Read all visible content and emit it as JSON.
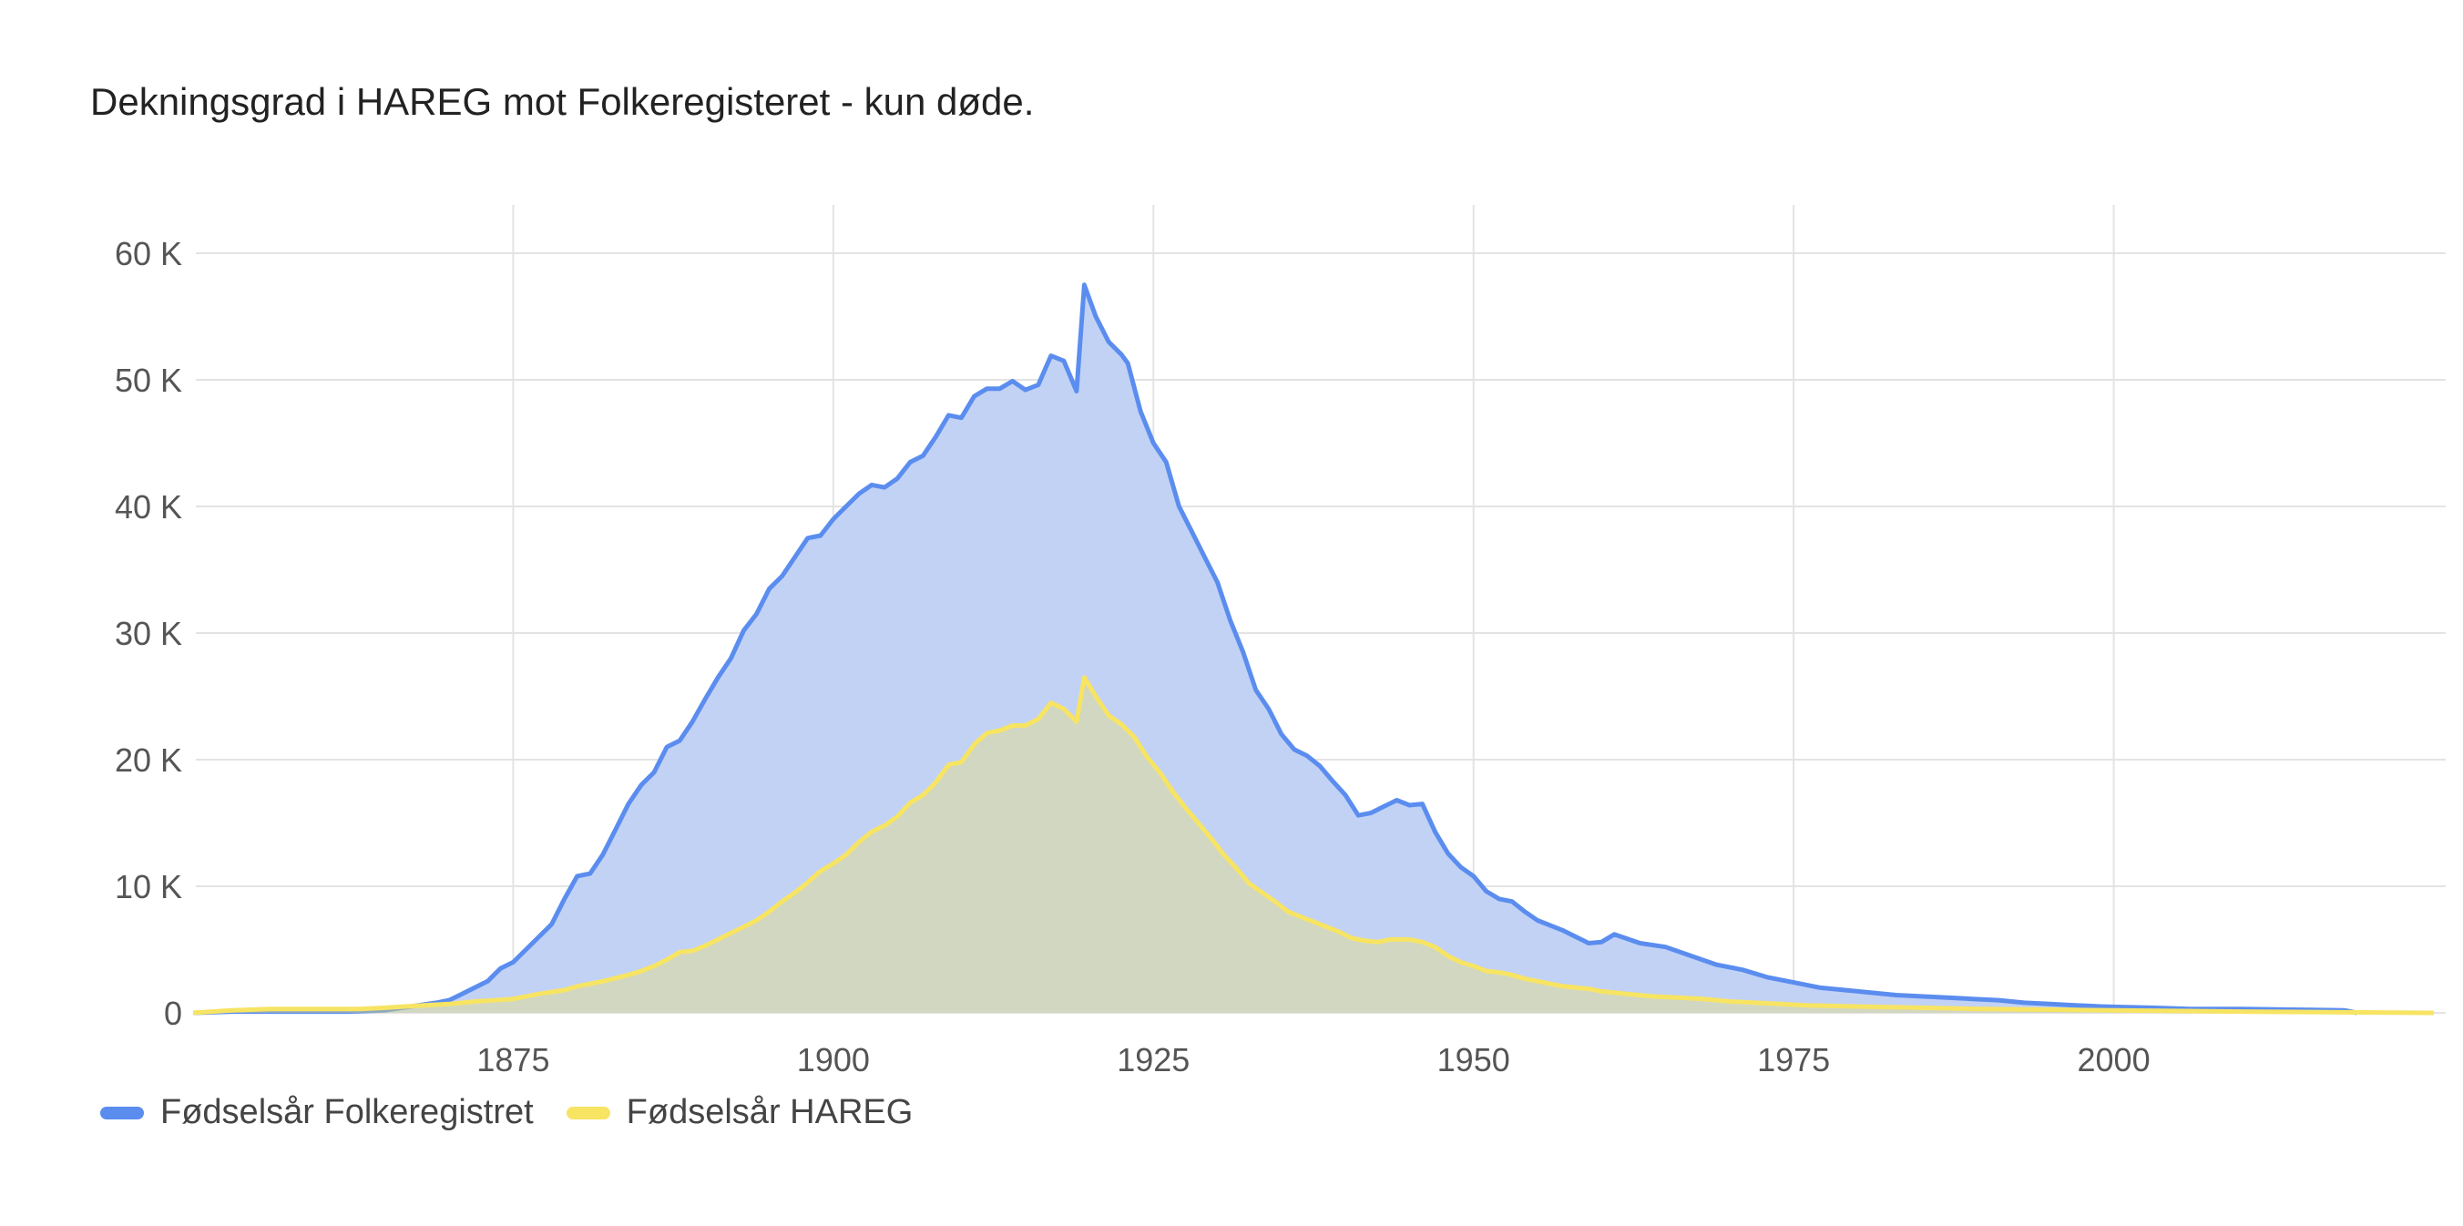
{
  "chart_data": {
    "type": "area",
    "title": "Dekningsgrad i HAREG mot Folkeregisteret - kun døde.",
    "xlabel": "",
    "ylabel": "",
    "xlim": [
      1850,
      2025
    ],
    "ylim": [
      0,
      60000
    ],
    "x_ticks": [
      1875,
      1900,
      1925,
      1950,
      1975,
      2000
    ],
    "x_tick_labels": [
      "1875",
      "1900",
      "1925",
      "1950",
      "1975",
      "2000"
    ],
    "y_ticks": [
      0,
      10000,
      20000,
      30000,
      40000,
      50000,
      60000
    ],
    "y_tick_labels": [
      "0",
      "10 K",
      "20 K",
      "30 K",
      "40 K",
      "50 K",
      "60 K"
    ],
    "grid": true,
    "legend_position": "bottom-left",
    "series": [
      {
        "name": "Fødselsår Folkeregistret",
        "color": "#5b8def",
        "fill": "#c2d2f5",
        "points": [
          [
            1850,
            0
          ],
          [
            1853,
            100
          ],
          [
            1856,
            100
          ],
          [
            1859,
            100
          ],
          [
            1862,
            100
          ],
          [
            1865,
            200
          ],
          [
            1867,
            500
          ],
          [
            1869,
            800
          ],
          [
            1870,
            1000
          ],
          [
            1871,
            1500
          ],
          [
            1873,
            2500
          ],
          [
            1874,
            3500
          ],
          [
            1875,
            4000
          ],
          [
            1877,
            6000
          ],
          [
            1878,
            7000
          ],
          [
            1879,
            9000
          ],
          [
            1880,
            10800
          ],
          [
            1881,
            11000
          ],
          [
            1882,
            12500
          ],
          [
            1883,
            14500
          ],
          [
            1884,
            16500
          ],
          [
            1885,
            18000
          ],
          [
            1886,
            19000
          ],
          [
            1887,
            21000
          ],
          [
            1888,
            21500
          ],
          [
            1889,
            23000
          ],
          [
            1890,
            24800
          ],
          [
            1891,
            26500
          ],
          [
            1892,
            28000
          ],
          [
            1893,
            30200
          ],
          [
            1894,
            31500
          ],
          [
            1895,
            33500
          ],
          [
            1896,
            34500
          ],
          [
            1897,
            36000
          ],
          [
            1898,
            37500
          ],
          [
            1899,
            37700
          ],
          [
            1900,
            39000
          ],
          [
            1901,
            40000
          ],
          [
            1902,
            41000
          ],
          [
            1903,
            41700
          ],
          [
            1904,
            41500
          ],
          [
            1905,
            42200
          ],
          [
            1906,
            43500
          ],
          [
            1907,
            44000
          ],
          [
            1908,
            45500
          ],
          [
            1909,
            47200
          ],
          [
            1910,
            47000
          ],
          [
            1911,
            48700
          ],
          [
            1912,
            49300
          ],
          [
            1913,
            49300
          ],
          [
            1914,
            49900
          ],
          [
            1915,
            49200
          ],
          [
            1916,
            49600
          ],
          [
            1917,
            51900
          ],
          [
            1918,
            51500
          ],
          [
            1919,
            49100
          ],
          [
            1919.6,
            57500
          ],
          [
            1920.5,
            55000
          ],
          [
            1921.5,
            53000
          ],
          [
            1922.5,
            52000
          ],
          [
            1923,
            51300
          ],
          [
            1924,
            47500
          ],
          [
            1925,
            45000
          ],
          [
            1926,
            43500
          ],
          [
            1927,
            40000
          ],
          [
            1928,
            38000
          ],
          [
            1929,
            36000
          ],
          [
            1930,
            34000
          ],
          [
            1931,
            31000
          ],
          [
            1932,
            28500
          ],
          [
            1933,
            25500
          ],
          [
            1934,
            24000
          ],
          [
            1935,
            22000
          ],
          [
            1936,
            20800
          ],
          [
            1937,
            20300
          ],
          [
            1938,
            19500
          ],
          [
            1939,
            18300
          ],
          [
            1940,
            17200
          ],
          [
            1941,
            15600
          ],
          [
            1942,
            15800
          ],
          [
            1943,
            16300
          ],
          [
            1944,
            16800
          ],
          [
            1945,
            16400
          ],
          [
            1946,
            16500
          ],
          [
            1947,
            14300
          ],
          [
            1948,
            12600
          ],
          [
            1949,
            11500
          ],
          [
            1950,
            10800
          ],
          [
            1951,
            9600
          ],
          [
            1952,
            9000
          ],
          [
            1953,
            8800
          ],
          [
            1954,
            8000
          ],
          [
            1955,
            7300
          ],
          [
            1957,
            6500
          ],
          [
            1959,
            5500
          ],
          [
            1960,
            5600
          ],
          [
            1961,
            6200
          ],
          [
            1963,
            5500
          ],
          [
            1965,
            5200
          ],
          [
            1967,
            4500
          ],
          [
            1969,
            3800
          ],
          [
            1971,
            3400
          ],
          [
            1973,
            2800
          ],
          [
            1975,
            2400
          ],
          [
            1977,
            2000
          ],
          [
            1979,
            1800
          ],
          [
            1981,
            1600
          ],
          [
            1983,
            1400
          ],
          [
            1985,
            1300
          ],
          [
            1987,
            1200
          ],
          [
            1989,
            1100
          ],
          [
            1991,
            1000
          ],
          [
            1993,
            800
          ],
          [
            1995,
            700
          ],
          [
            1997,
            600
          ],
          [
            1999,
            500
          ],
          [
            2001,
            450
          ],
          [
            2003,
            400
          ],
          [
            2006,
            300
          ],
          [
            2010,
            300
          ],
          [
            2014,
            250
          ],
          [
            2018,
            200
          ],
          [
            2019,
            0
          ]
        ]
      },
      {
        "name": "Fødselsår HAREG",
        "color": "#f7e463",
        "fill": "rgba(240,225,100,0.35)",
        "points": [
          [
            1850,
            0
          ],
          [
            1853,
            200
          ],
          [
            1856,
            300
          ],
          [
            1860,
            300
          ],
          [
            1863,
            300
          ],
          [
            1865,
            400
          ],
          [
            1868,
            600
          ],
          [
            1870,
            700
          ],
          [
            1872,
            900
          ],
          [
            1875,
            1100
          ],
          [
            1877,
            1500
          ],
          [
            1879,
            1800
          ],
          [
            1880,
            2100
          ],
          [
            1882,
            2500
          ],
          [
            1884,
            3000
          ],
          [
            1885,
            3300
          ],
          [
            1886,
            3700
          ],
          [
            1887,
            4200
          ],
          [
            1888,
            4800
          ],
          [
            1889,
            4900
          ],
          [
            1890,
            5300
          ],
          [
            1891,
            5800
          ],
          [
            1892,
            6300
          ],
          [
            1893,
            6800
          ],
          [
            1894,
            7300
          ],
          [
            1895,
            8000
          ],
          [
            1896,
            8800
          ],
          [
            1897,
            9500
          ],
          [
            1898,
            10300
          ],
          [
            1899,
            11200
          ],
          [
            1900,
            11800
          ],
          [
            1901,
            12500
          ],
          [
            1902,
            13500
          ],
          [
            1903,
            14300
          ],
          [
            1904,
            14800
          ],
          [
            1905,
            15500
          ],
          [
            1906,
            16600
          ],
          [
            1907,
            17200
          ],
          [
            1908,
            18200
          ],
          [
            1909,
            19600
          ],
          [
            1910,
            19800
          ],
          [
            1911,
            21200
          ],
          [
            1912,
            22100
          ],
          [
            1913,
            22300
          ],
          [
            1914,
            22700
          ],
          [
            1915,
            22700
          ],
          [
            1916,
            23200
          ],
          [
            1917,
            24500
          ],
          [
            1918,
            24000
          ],
          [
            1919,
            23000
          ],
          [
            1919.6,
            26500
          ],
          [
            1920.5,
            25000
          ],
          [
            1921.5,
            23500
          ],
          [
            1922.5,
            22800
          ],
          [
            1923.5,
            21800
          ],
          [
            1924.5,
            20200
          ],
          [
            1925.5,
            19000
          ],
          [
            1926.5,
            17500
          ],
          [
            1927.5,
            16200
          ],
          [
            1928.5,
            15000
          ],
          [
            1929.5,
            13800
          ],
          [
            1930.5,
            12500
          ],
          [
            1931.5,
            11400
          ],
          [
            1932.5,
            10200
          ],
          [
            1933.5,
            9500
          ],
          [
            1934.5,
            8800
          ],
          [
            1935.5,
            8000
          ],
          [
            1936.5,
            7600
          ],
          [
            1937.5,
            7200
          ],
          [
            1938.5,
            6800
          ],
          [
            1939.5,
            6400
          ],
          [
            1940.5,
            5900
          ],
          [
            1941.5,
            5700
          ],
          [
            1942.5,
            5600
          ],
          [
            1943.5,
            5800
          ],
          [
            1945,
            5800
          ],
          [
            1946,
            5600
          ],
          [
            1947,
            5200
          ],
          [
            1948,
            4500
          ],
          [
            1949,
            4000
          ],
          [
            1950,
            3700
          ],
          [
            1951,
            3300
          ],
          [
            1952,
            3200
          ],
          [
            1953,
            3000
          ],
          [
            1954,
            2700
          ],
          [
            1955,
            2500
          ],
          [
            1957,
            2100
          ],
          [
            1959,
            1900
          ],
          [
            1960,
            1700
          ],
          [
            1962,
            1500
          ],
          [
            1964,
            1300
          ],
          [
            1966,
            1200
          ],
          [
            1968,
            1100
          ],
          [
            1970,
            900
          ],
          [
            1972,
            800
          ],
          [
            1974,
            700
          ],
          [
            1976,
            600
          ],
          [
            1980,
            500
          ],
          [
            1985,
            400
          ],
          [
            1990,
            300
          ],
          [
            2000,
            200
          ],
          [
            2010,
            100
          ],
          [
            2025,
            0
          ]
        ]
      }
    ]
  }
}
